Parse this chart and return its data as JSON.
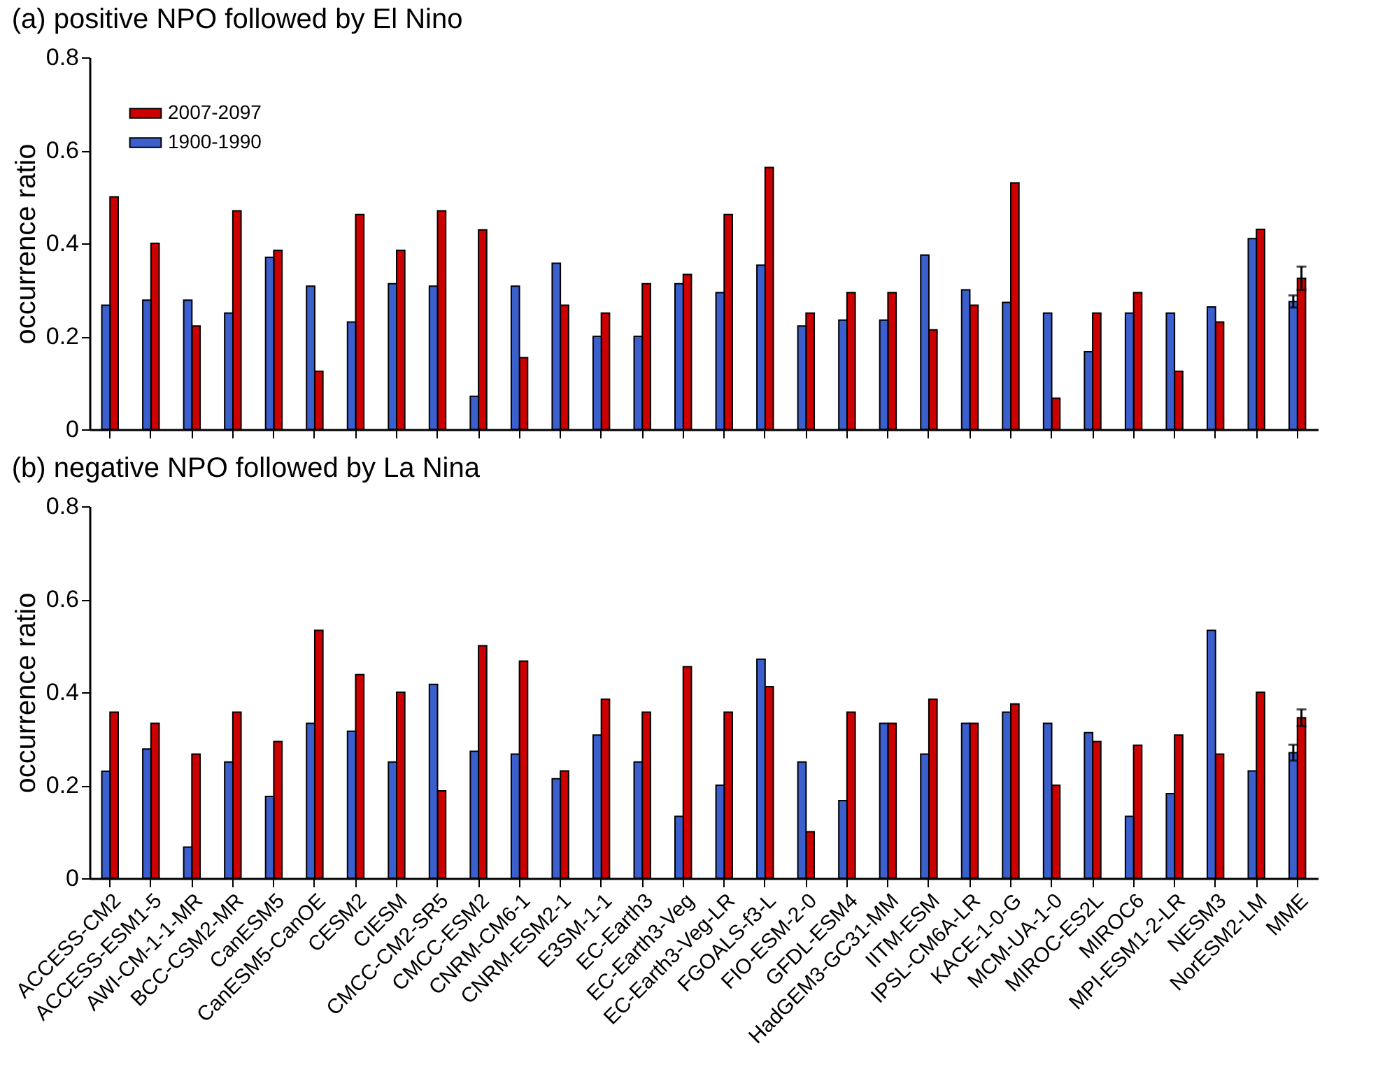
{
  "chart_data": [
    {
      "type": "bar",
      "title": "(a) positive NPO followed by El Nino",
      "ylabel": "occurrence ratio",
      "categories": [
        null,
        null,
        null,
        null,
        null,
        null,
        null,
        null,
        null,
        null,
        null,
        null,
        null,
        null,
        null,
        null,
        null,
        null,
        null,
        null,
        null,
        null,
        null,
        null,
        null,
        null,
        null,
        null,
        null,
        null
      ],
      "series": [
        {
          "name": "2007-2097",
          "color": "#cc0000",
          "values": [
            0.5,
            0.4,
            0.222,
            0.47,
            0.385,
            0.125,
            0.462,
            0.385,
            0.47,
            0.429,
            0.154,
            0.267,
            0.25,
            0.313,
            0.333,
            0.462,
            0.563,
            0.25,
            0.294,
            0.294,
            0.214,
            0.267,
            0.53,
            0.067,
            0.25,
            0.294,
            0.125,
            0.231,
            0.43,
            0.325
          ],
          "errors": [
            null,
            null,
            null,
            null,
            null,
            null,
            null,
            null,
            null,
            null,
            null,
            null,
            null,
            null,
            null,
            null,
            null,
            null,
            null,
            null,
            null,
            null,
            null,
            null,
            null,
            null,
            null,
            null,
            null,
            0.025
          ]
        },
        {
          "name": "1900-1990",
          "color": "#3b5fcd",
          "values": [
            0.267,
            0.278,
            0.278,
            0.25,
            0.37,
            0.308,
            0.231,
            0.313,
            0.308,
            0.071,
            0.308,
            0.357,
            0.2,
            0.2,
            0.313,
            0.294,
            0.353,
            0.222,
            0.235,
            0.235,
            0.375,
            0.3,
            0.273,
            0.25,
            0.167,
            0.25,
            0.25,
            0.263,
            0.41,
            0.275
          ],
          "errors": [
            null,
            null,
            null,
            null,
            null,
            null,
            null,
            null,
            null,
            null,
            null,
            null,
            null,
            null,
            null,
            null,
            null,
            null,
            null,
            null,
            null,
            null,
            null,
            null,
            null,
            null,
            null,
            null,
            null,
            0.013
          ]
        }
      ],
      "ylim": [
        0,
        0.8
      ],
      "yticks": [
        0,
        0.2,
        0.4,
        0.6,
        0.8
      ],
      "legend": "top left",
      "tick_labels": "y"
    },
    {
      "type": "bar",
      "title": "(b) negative NPO followed by La Nina",
      "ylabel": "occurrence ratio",
      "categories": [
        "ACCESS-CM2",
        "ACCESS-ESM1-5",
        "AWI-CM-1-1-MR",
        "BCC-CSM2-MR",
        "CanESM5",
        "CanESM5-CanOE",
        "CESM2",
        "CIESM",
        "CMCC-CM2-SR5",
        "CMCC-ESM2",
        "CNRM-CM6-1",
        "CNRM-ESM2-1",
        "E3SM-1-1",
        "EC-Earth3",
        "EC-Earth3-Veg",
        "EC-Earth3-Veg-LR",
        "FGOALS-f3-L",
        "FIO-ESM-2-0",
        "GFDL-ESM4",
        "HadGEM3-GC31-MM",
        "IITM-ESM",
        "IPSL-CM6A-LR",
        "KACE-1-0-G",
        "MCM-UA-1-0",
        "MIROC-ES2L",
        "MIROC6",
        "MPI-ESM1-2-LR",
        "NESM3",
        "NorESM2-LM",
        "MME"
      ],
      "series": [
        {
          "color": "#cc0000",
          "values": [
            0.357,
            0.333,
            0.267,
            0.357,
            0.294,
            0.533,
            0.438,
            0.4,
            0.188,
            0.5,
            0.467,
            0.231,
            0.385,
            0.357,
            0.455,
            0.357,
            0.412,
            0.1,
            0.357,
            0.333,
            0.385,
            0.333,
            0.375,
            0.2,
            0.294,
            0.286,
            0.308,
            0.267,
            0.4,
            0.345
          ],
          "errors": [
            null,
            null,
            null,
            null,
            null,
            null,
            null,
            null,
            null,
            null,
            null,
            null,
            null,
            null,
            null,
            null,
            null,
            null,
            null,
            null,
            null,
            null,
            null,
            null,
            null,
            null,
            null,
            null,
            null,
            0.018
          ]
        },
        {
          "color": "#3b5fcd",
          "values": [
            0.23,
            0.278,
            0.067,
            0.25,
            0.176,
            0.333,
            0.316,
            0.25,
            0.417,
            0.273,
            0.267,
            0.214,
            0.308,
            0.25,
            0.133,
            0.2,
            0.471,
            0.25,
            0.167,
            0.333,
            0.267,
            0.333,
            0.357,
            0.333,
            0.313,
            0.133,
            0.182,
            0.533,
            0.231,
            0.27
          ],
          "errors": [
            null,
            null,
            null,
            null,
            null,
            null,
            null,
            null,
            null,
            null,
            null,
            null,
            null,
            null,
            null,
            null,
            null,
            null,
            null,
            null,
            null,
            null,
            null,
            null,
            null,
            null,
            null,
            null,
            null,
            0.017
          ]
        }
      ],
      "ylim": [
        0,
        0.8
      ],
      "yticks": [
        0,
        0.2,
        0.4,
        0.6,
        0.8
      ]
    }
  ]
}
